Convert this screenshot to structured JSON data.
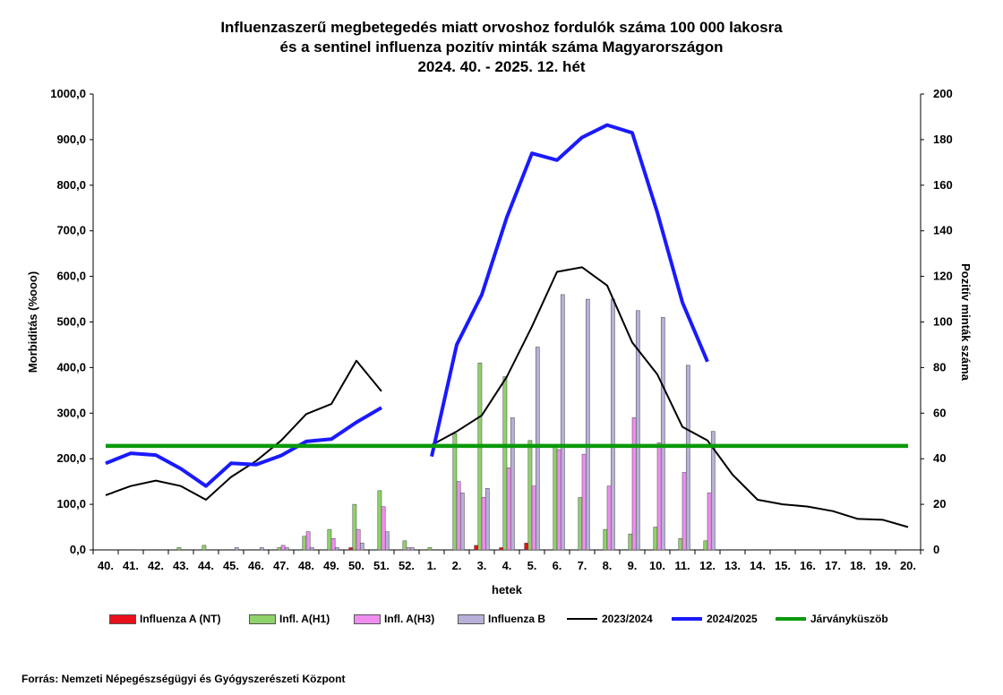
{
  "title_lines": [
    "Influenzaszerű megbetegedés miatt orvoshoz fordulók száma 100 000 lakosra",
    "és a sentinel influenza pozitív minták száma Magyarországon",
    "2024. 40. - 2025. 12. hét"
  ],
  "source": "Forrás: Nemzeti Népegészségügyi és Gyógyszerészeti Központ",
  "chart_data": {
    "type": "bar",
    "xlabel": "hetek",
    "ylabel": "Morbiditás (%ooo)",
    "y2label": "Pozitív minták száma",
    "ylim": [
      0,
      1000
    ],
    "y2lim": [
      0,
      200
    ],
    "yticks": [
      "0,0",
      "100,0",
      "200,0",
      "300,0",
      "400,0",
      "500,0",
      "600,0",
      "700,0",
      "800,0",
      "900,0",
      "1000,0"
    ],
    "y2ticks": [
      "0",
      "20",
      "40",
      "60",
      "80",
      "100",
      "120",
      "140",
      "160",
      "180",
      "200"
    ],
    "categories": [
      "40.",
      "41.",
      "42.",
      "43.",
      "44.",
      "45.",
      "46.",
      "47.",
      "48.",
      "49.",
      "50.",
      "51.",
      "52.",
      "1.",
      "2.",
      "3.",
      "4.",
      "5.",
      "6.",
      "7.",
      "8.",
      "9.",
      "10.",
      "11.",
      "12.",
      "13.",
      "14.",
      "15.",
      "16.",
      "17.",
      "18.",
      "19.",
      "20."
    ],
    "bar_series": [
      {
        "name": "Influenza A (NT)",
        "color": "#e8101a",
        "values": [
          0,
          0,
          0,
          0,
          0,
          0,
          0,
          0,
          0,
          0,
          1,
          0,
          0,
          0,
          0,
          2,
          1,
          3,
          0,
          0,
          0,
          0,
          0,
          0,
          0,
          null,
          null,
          null,
          null,
          null,
          null,
          null,
          null
        ]
      },
      {
        "name": "Infl. A(H1)",
        "color": "#8fd16a",
        "values": [
          0,
          0,
          0,
          1,
          2,
          0,
          0,
          1,
          6,
          9,
          20,
          26,
          4,
          1,
          51,
          82,
          76,
          48,
          45,
          23,
          9,
          7,
          10,
          5,
          4,
          null,
          null,
          null,
          null,
          null,
          null,
          null,
          null
        ]
      },
      {
        "name": "Infl. A(H3)",
        "color": "#f08ef0",
        "values": [
          0,
          0,
          0,
          0,
          0,
          0,
          0,
          2,
          8,
          5,
          9,
          19,
          1,
          0,
          30,
          23,
          36,
          28,
          44,
          42,
          28,
          58,
          47,
          34,
          25,
          null,
          null,
          null,
          null,
          null,
          null,
          null,
          null
        ]
      },
      {
        "name": "Influenza B",
        "color": "#b8b0d8",
        "values": [
          0,
          0,
          0,
          0,
          0,
          1,
          1,
          1,
          1,
          1,
          3,
          8,
          1,
          0,
          25,
          27,
          58,
          89,
          112,
          110,
          110,
          105,
          102,
          81,
          52,
          null,
          null,
          null,
          null,
          null,
          null,
          null,
          null
        ]
      }
    ],
    "line_series": [
      {
        "name": "2023/2024",
        "color": "#000000",
        "values": [
          120,
          140,
          152,
          140,
          110,
          160,
          195,
          240,
          298,
          320,
          415,
          348,
          null,
          230,
          260,
          295,
          380,
          490,
          610,
          620,
          580,
          455,
          385,
          270,
          240,
          165,
          110,
          100,
          95,
          85,
          68,
          66,
          50
        ]
      },
      {
        "name": "2024/2025",
        "color": "#1a1aff",
        "values": [
          190,
          212,
          208,
          178,
          140,
          190,
          187,
          207,
          238,
          243,
          280,
          312,
          null,
          205,
          450,
          560,
          730,
          870,
          855,
          905,
          932,
          915,
          740,
          543,
          413,
          null,
          null,
          null,
          null,
          null,
          null,
          null,
          null
        ]
      },
      {
        "name": "Járványküszöb",
        "color": "#0a9a0a",
        "values": [
          228,
          228,
          228,
          228,
          228,
          228,
          228,
          228,
          228,
          228,
          228,
          228,
          228,
          228,
          228,
          228,
          228,
          228,
          228,
          228,
          228,
          228,
          228,
          228,
          228,
          228,
          228,
          228,
          228,
          228,
          228,
          228,
          228
        ]
      }
    ],
    "legend_position": "bottom"
  }
}
